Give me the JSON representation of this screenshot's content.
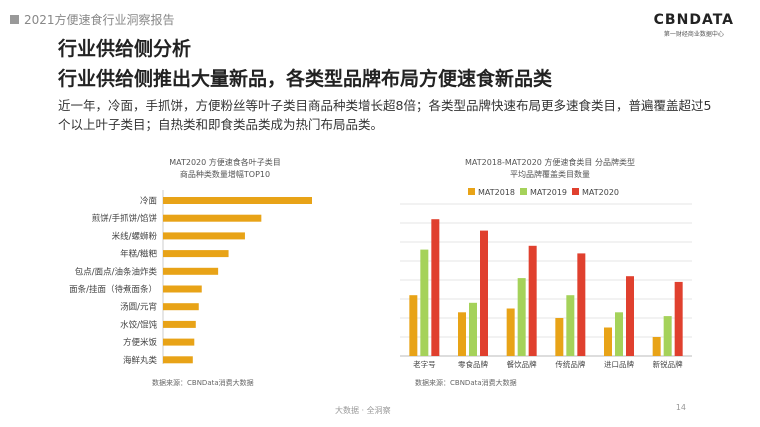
{
  "header": {
    "report_title": "2021方便速食行业洞察报告"
  },
  "logo": {
    "name": "CBNDATA",
    "tagline": "第一财经商业数据中心"
  },
  "slide": {
    "title": "行业供给侧分析",
    "subtitle": "行业供给侧推出大量新品，各类型品牌布局方便速食新品类",
    "body": "近一年，冷面，手抓饼，方便粉丝等叶子类目商品种类增长超8倍；各类型品牌快速布局更多速食类目，普遍覆盖超过5个以上叶子类目；自热类和即食类品类成为热门布局品类。"
  },
  "chart_left": {
    "title_line1": "MAT2020 方便速食各叶子类目",
    "title_line2": "商品种类数量增幅TOP10",
    "source": "数据来源：CBNData消费大数据"
  },
  "chart_right": {
    "title_line1": "MAT2018-MAT2020 方便速食类目 分品牌类型",
    "title_line2": "平均品牌覆盖类目数量",
    "source": "数据来源：CBNData消费大数据"
  },
  "footer": {
    "text": "大数据 · 全洞察",
    "page": "14"
  },
  "colors": {
    "orange": "#E8A317",
    "green": "#A5D25A",
    "red": "#E0402E",
    "grid": "#dddddd"
  },
  "chart_data": [
    {
      "type": "bar",
      "orientation": "horizontal",
      "title": "MAT2020 方便速食各叶子类目 商品种类数量增幅TOP10",
      "categories": [
        "冷面",
        "煎饼/手抓饼/馅饼",
        "米线/螺蛳粉",
        "年糕/糍粑",
        "包点/面点/油条油炸类",
        "面条/挂面（待煮面条）",
        "汤圆/元宵",
        "水饺/馄饨",
        "方便米饭",
        "海鲜丸类"
      ],
      "values": [
        100,
        66,
        55,
        44,
        37,
        26,
        24,
        22,
        21,
        20
      ],
      "xlim": [
        0,
        100
      ],
      "unit": "relative",
      "color": "#E8A317"
    },
    {
      "type": "bar",
      "title": "MAT2018-MAT2020 方便速食类目 分品牌类型 平均品牌覆盖类目数量",
      "categories": [
        "老字号",
        "零食品牌",
        "餐饮品牌",
        "传统品牌",
        "进口品牌",
        "新锐品牌"
      ],
      "series": [
        {
          "name": "MAT2018",
          "color": "#E8A317",
          "values": [
            3.2,
            2.3,
            2.5,
            2.0,
            1.5,
            1.0
          ]
        },
        {
          "name": "MAT2019",
          "color": "#A5D25A",
          "values": [
            5.6,
            2.8,
            4.1,
            3.2,
            2.3,
            2.1
          ]
        },
        {
          "name": "MAT2020",
          "color": "#E0402E",
          "values": [
            7.2,
            6.6,
            5.8,
            5.4,
            4.2,
            3.9
          ]
        }
      ],
      "ylim": [
        0,
        8
      ],
      "gridlines": 8,
      "legend": "top"
    }
  ]
}
